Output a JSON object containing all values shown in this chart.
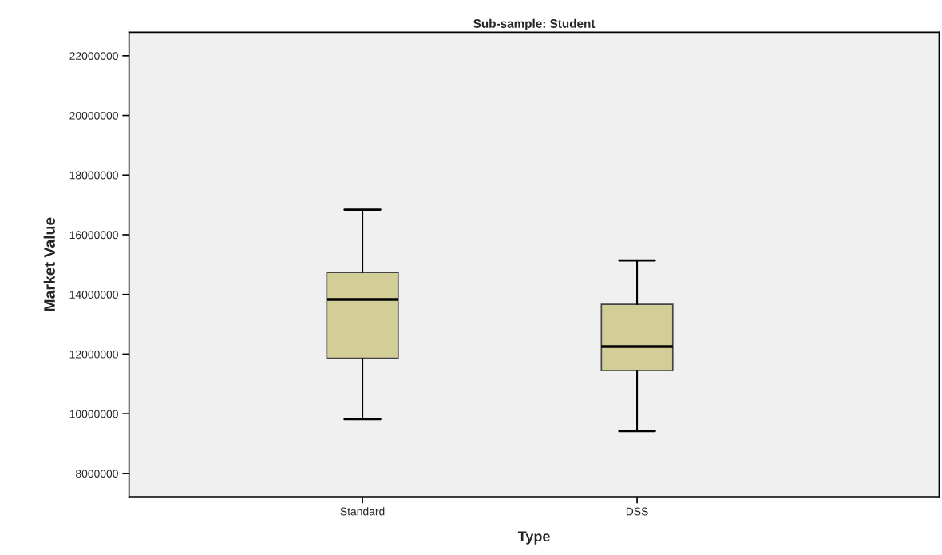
{
  "chart_data": {
    "type": "box",
    "title": "Sub-sample: Student",
    "xlabel": "Type",
    "ylabel": "Market Value",
    "categories": [
      "Standard",
      "DSS"
    ],
    "boxes": [
      {
        "low": 9820000,
        "q1": 11860000,
        "median": 13830000,
        "q3": 14740000,
        "high": 16840000
      },
      {
        "low": 9420000,
        "q1": 11450000,
        "median": 12250000,
        "q3": 13670000,
        "high": 15140000
      }
    ],
    "color": "#d3cd98",
    "ylim": [
      7220000,
      22790000
    ],
    "yticks": [
      8000000,
      10000000,
      12000000,
      14000000,
      16000000,
      18000000,
      20000000,
      22000000
    ],
    "grid": false
  }
}
